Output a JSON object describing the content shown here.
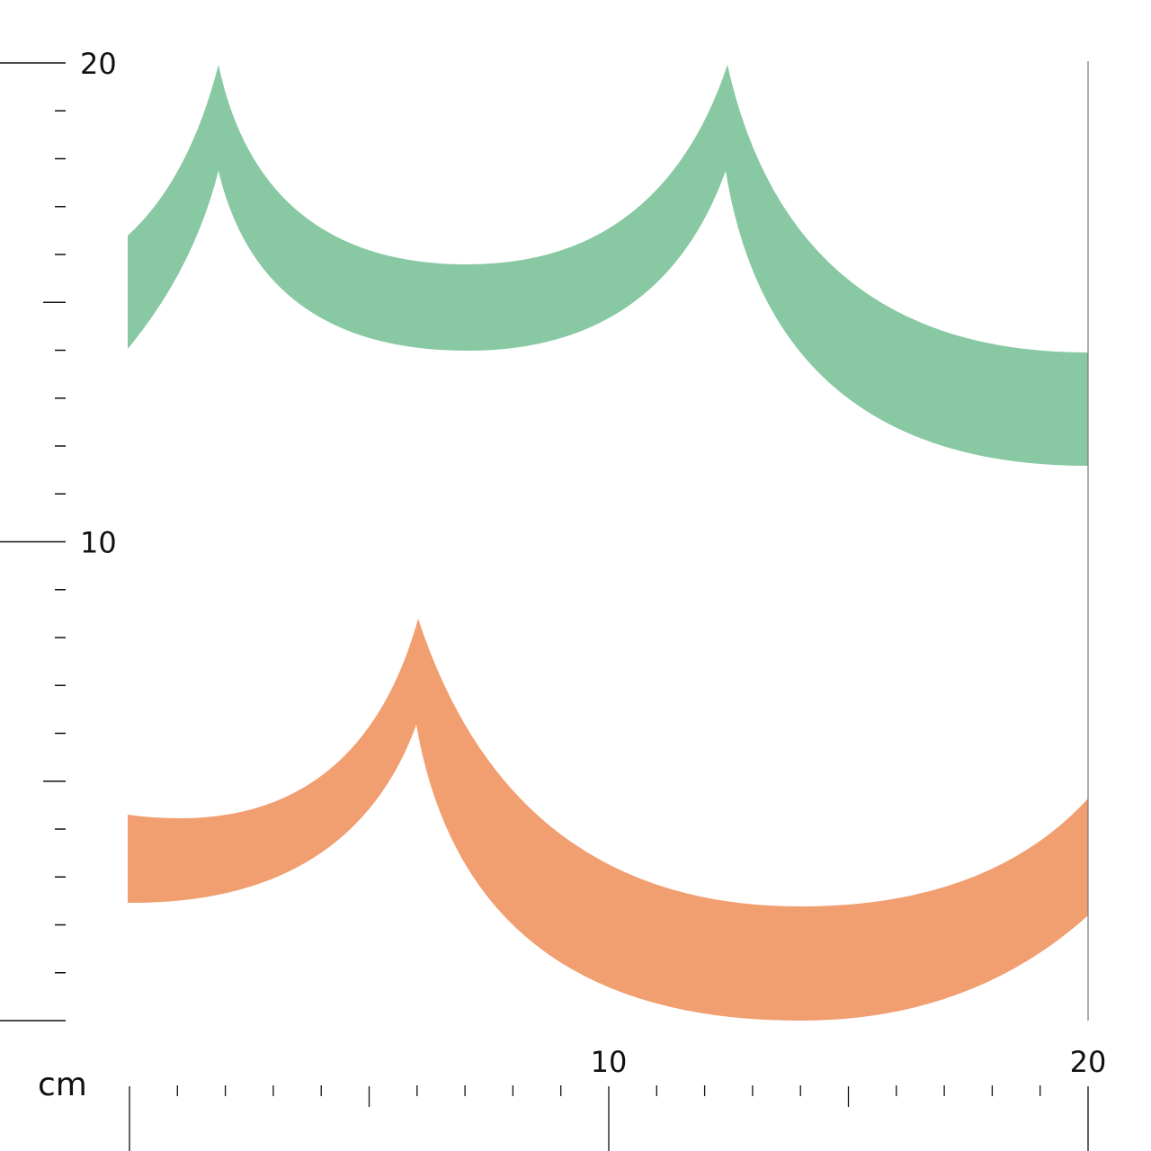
{
  "ruler": {
    "unit": "cm",
    "horizontal": {
      "min": 0,
      "max": 20,
      "labels": [
        {
          "value": 10,
          "text": "10"
        },
        {
          "value": 20,
          "text": "20"
        }
      ]
    },
    "vertical": {
      "min": 0,
      "max": 20,
      "labels": [
        {
          "value": 10,
          "text": "10"
        },
        {
          "value": 20,
          "text": "20"
        }
      ]
    }
  },
  "bands": [
    {
      "name": "green-band",
      "color": "#88c9a3"
    },
    {
      "name": "orange-band",
      "color": "#f19e70"
    }
  ]
}
